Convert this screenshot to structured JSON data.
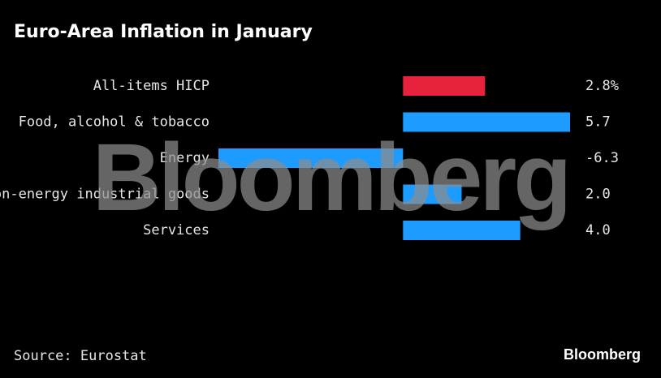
{
  "chart_data": {
    "type": "hbar",
    "title": "Euro-Area Inflation in January",
    "categories": [
      "All-items HICP",
      "Food, alcohol & tobacco",
      "Energy",
      "Non-energy industrial goods",
      "Services"
    ],
    "values": [
      2.8,
      5.7,
      -6.3,
      2.0,
      4.0
    ],
    "value_labels": [
      "2.8%",
      "5.7",
      "-6.3",
      "2.0",
      "4.0"
    ],
    "colors": [
      "#e8223c",
      "#1e9bff",
      "#1e9bff",
      "#1e9bff",
      "#1e9bff"
    ],
    "source": "Source: Eurostat",
    "watermark": "Bloomberg",
    "logo": "Bloomberg"
  }
}
